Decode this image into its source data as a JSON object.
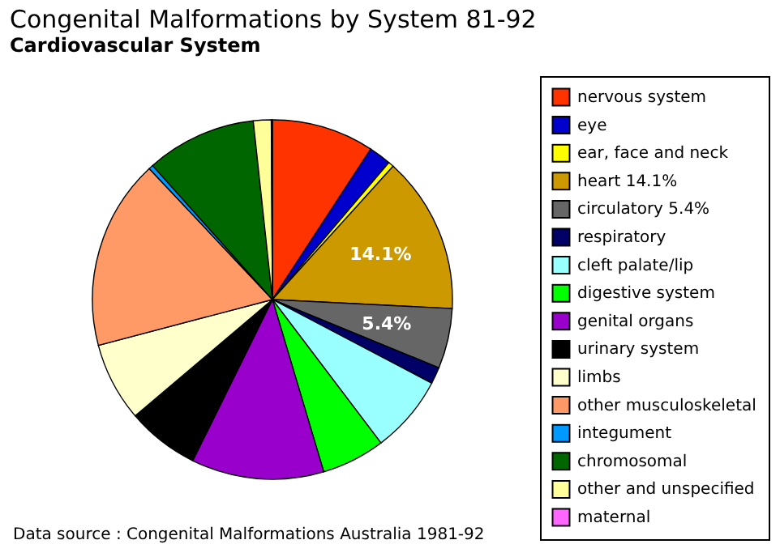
{
  "chart_data": {
    "type": "pie",
    "title": "Congenital Malformations by System 81-92",
    "subtitle": "Cardiovascular System",
    "categories": [
      "nervous system",
      "eye",
      "ear, face and neck",
      "heart  14.1%",
      "circulatory  5.4%",
      "respiratory",
      "cleft palate/lip",
      "digestive system",
      "genital organs",
      "urinary system",
      "limbs",
      "other musculoskeletal",
      "integument",
      "chromosomal",
      "other and unspecified",
      "maternal"
    ],
    "values": [
      9.2,
      2.0,
      0.5,
      14.1,
      5.4,
      1.5,
      7.0,
      5.7,
      11.9,
      6.5,
      7.1,
      17.1,
      0.4,
      9.9,
      1.6,
      0.1
    ],
    "value_labels": [
      null,
      null,
      null,
      "14.1%",
      "5.4%",
      null,
      null,
      null,
      null,
      null,
      null,
      null,
      null,
      null,
      null,
      null
    ],
    "colors": [
      "#ff3300",
      "#0000cc",
      "#ffff00",
      "#cc9900",
      "#666666",
      "#000066",
      "#99ffff",
      "#00ff00",
      "#9900cc",
      "#000000",
      "#ffffcc",
      "#ff9966",
      "#0099ff",
      "#006600",
      "#ffff99",
      "#ff66ff"
    ],
    "legend": "right",
    "annotations": [
      "Data source : Congenital Malformations Australia 1981-92"
    ]
  }
}
